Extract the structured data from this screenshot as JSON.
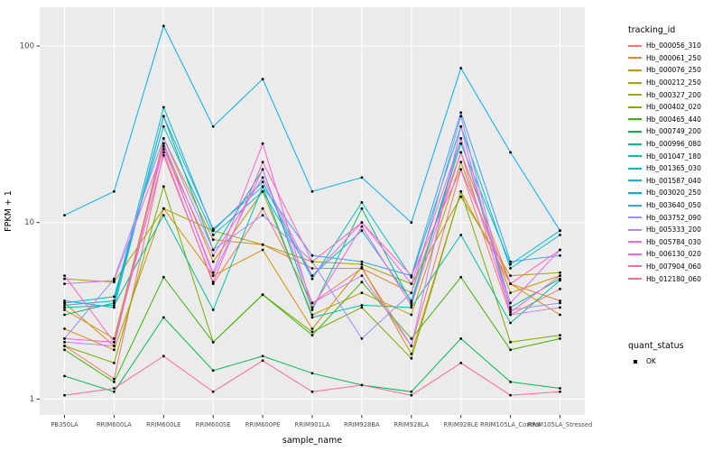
{
  "chart_data": {
    "type": "line",
    "title": "",
    "xlabel": "sample_name",
    "ylabel": "FPKM + 1",
    "y_scale": "log10",
    "y_ticks": [
      1,
      10,
      100
    ],
    "y_minor_log": [
      0.5,
      1.5
    ],
    "log_ylim": [
      -0.09,
      2.22
    ],
    "grid": true,
    "legend_position": "right",
    "legend_title": "tracking_id",
    "quant_legend_title": "quant_status",
    "quant_status_value": "OK",
    "panel_color": "#EBEBEB",
    "gridline_color": "#FFFFFF",
    "point_color": "#000000",
    "categories": [
      "PB350LA",
      "RRIM600LA",
      "RRIM600LE",
      "RRIM600SE",
      "RRIM600PE",
      "RRIM901LA",
      "RRIM928BA",
      "RRIM928LA",
      "RRIM928LE",
      "RRIM105LA_Control",
      "RRIM105LA_Stressed"
    ],
    "series": [
      {
        "name": "Hb_000056_310",
        "color": "#F8766D",
        "values": [
          2.0,
          1.3,
          25,
          4.5,
          12,
          3.5,
          5.5,
          2.0,
          20,
          3.0,
          4.2
        ]
      },
      {
        "name": "Hb_000061_250",
        "color": "#EA8331",
        "values": [
          3.5,
          2.0,
          30,
          8.0,
          7.5,
          5.5,
          5.5,
          4.0,
          25,
          4.5,
          3.6
        ]
      },
      {
        "name": "Hb_000076_250",
        "color": "#D89000",
        "values": [
          2.5,
          1.9,
          12,
          5.0,
          7.0,
          2.5,
          5.6,
          1.8,
          15,
          4.5,
          3.0
        ]
      },
      {
        "name": "Hb_000212_250",
        "color": "#C09B00",
        "values": [
          3.2,
          2.2,
          28,
          6.0,
          15,
          3.0,
          4.0,
          3.0,
          22,
          4.0,
          5.0
        ]
      },
      {
        "name": "Hb_000327_200",
        "color": "#A3A500",
        "values": [
          4.8,
          4.6,
          12,
          9.0,
          7.5,
          6.0,
          5.8,
          4.5,
          14,
          5.0,
          5.2
        ]
      },
      {
        "name": "Hb_000402_020",
        "color": "#7CAE00",
        "values": [
          2.0,
          1.6,
          16,
          2.1,
          3.9,
          2.4,
          3.3,
          1.7,
          15,
          2.1,
          2.3
        ]
      },
      {
        "name": "Hb_000465_440",
        "color": "#39B600",
        "values": [
          1.9,
          1.25,
          4.9,
          2.1,
          3.9,
          2.3,
          4.6,
          2.2,
          4.9,
          1.9,
          2.2
        ]
      },
      {
        "name": "Hb_000749_200",
        "color": "#00BB4E",
        "values": [
          1.35,
          1.1,
          2.9,
          1.45,
          1.75,
          1.4,
          1.2,
          1.1,
          2.2,
          1.25,
          1.15
        ]
      },
      {
        "name": "Hb_000996_080",
        "color": "#00BF7D",
        "values": [
          3.0,
          3.5,
          40,
          7.0,
          20,
          3.2,
          12,
          3.5,
          30,
          3.3,
          4.8
        ]
      },
      {
        "name": "Hb_001047_180",
        "color": "#00C1A3",
        "values": [
          3.3,
          3.4,
          11,
          3.2,
          16,
          2.9,
          3.4,
          3.3,
          8.5,
          2.7,
          4.7
        ]
      },
      {
        "name": "Hb_001365_030",
        "color": "#00BFC4",
        "values": [
          3.4,
          3.6,
          45,
          9.0,
          17,
          4.8,
          13,
          4.9,
          35,
          5.5,
          8.5
        ]
      },
      {
        "name": "Hb_001587_040",
        "color": "#00BAE0",
        "values": [
          3.5,
          3.8,
          35,
          8.5,
          15,
          5.0,
          9.0,
          3.6,
          28,
          5.8,
          9.0
        ]
      },
      {
        "name": "Hb_003020_250",
        "color": "#00B0F6",
        "values": [
          11,
          15,
          130,
          35,
          65,
          15,
          18,
          10,
          75,
          25,
          9.0
        ]
      },
      {
        "name": "Hb_003640_050",
        "color": "#35A2FF",
        "values": [
          3.6,
          3.3,
          40,
          9.2,
          16,
          6.5,
          6.0,
          5.0,
          42,
          6.0,
          6.5
        ]
      },
      {
        "name": "Hb_003752_090",
        "color": "#9590FF",
        "values": [
          2.2,
          4.8,
          30,
          7.0,
          11,
          6.0,
          2.2,
          4.0,
          40,
          3.2,
          3.5
        ]
      },
      {
        "name": "Hb_005333_200",
        "color": "#C77CFF",
        "values": [
          2.1,
          2.0,
          28,
          5.0,
          20,
          3.5,
          5.0,
          2.0,
          35,
          3.0,
          3.3
        ]
      },
      {
        "name": "Hb_005784_030",
        "color": "#E76BF3",
        "values": [
          4.5,
          4.7,
          26,
          6.5,
          18,
          5.0,
          10,
          4.5,
          30,
          3.5,
          7.0
        ]
      },
      {
        "name": "Hb_006130_020",
        "color": "#FA62DB",
        "values": [
          2.2,
          2.1,
          27,
          5.2,
          28,
          3.3,
          9.5,
          3.4,
          25,
          3.1,
          5.0
        ]
      },
      {
        "name": "Hb_007904_060",
        "color": "#FF62BC",
        "values": [
          5.0,
          2.1,
          24,
          4.6,
          22,
          6.0,
          10,
          5.0,
          20,
          4.5,
          7.0
        ]
      },
      {
        "name": "Hb_012180_060",
        "color": "#FF6A98",
        "values": [
          1.05,
          1.15,
          1.75,
          1.1,
          1.65,
          1.1,
          1.2,
          1.05,
          1.6,
          1.05,
          1.1
        ]
      }
    ]
  }
}
